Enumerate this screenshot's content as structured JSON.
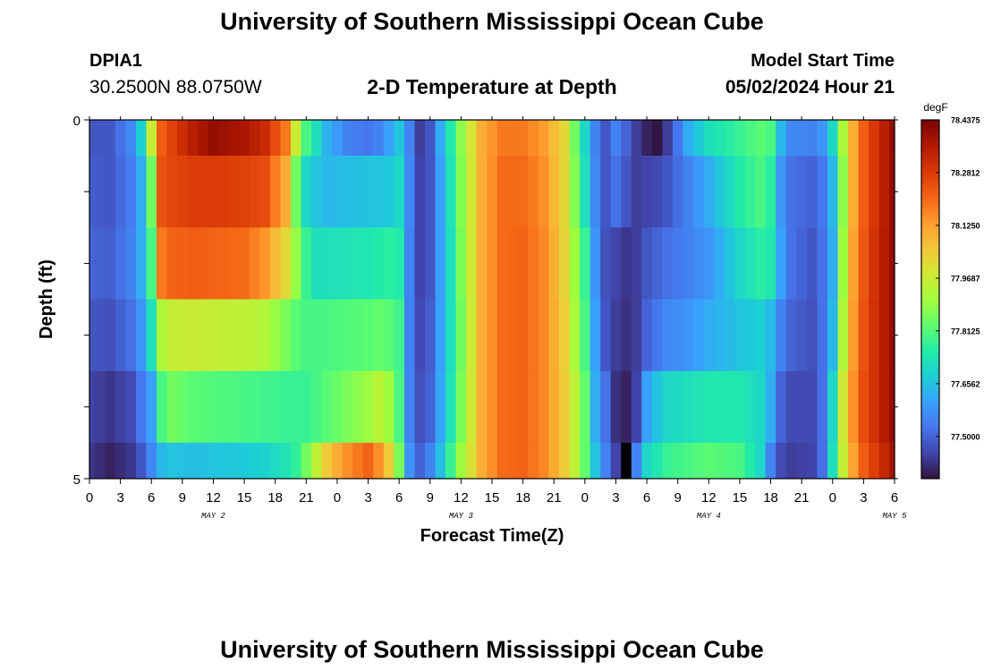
{
  "header": {
    "title": "University of Southern Mississippi Ocean Cube",
    "station_id": "DPIA1",
    "station_coords": "30.2500N  88.0750W",
    "plot_title": "2-D Temperature at Depth",
    "model_start_label": "Model Start Time",
    "model_start_value": "05/02/2024 Hour 21"
  },
  "footer": {
    "title_repeat": "University of Southern Mississippi Ocean Cube"
  },
  "chart_data": {
    "type": "heatmap",
    "title": "2-D Temperature at Depth",
    "xlabel": "Forecast Time(Z)",
    "ylabel": "Depth (ft)",
    "x_ticks": [
      "0",
      "3",
      "6",
      "9",
      "12",
      "15",
      "18",
      "21",
      "0",
      "3",
      "6",
      "9",
      "12",
      "15",
      "18",
      "21",
      "0",
      "3",
      "6",
      "9",
      "12",
      "15",
      "18",
      "21",
      "0",
      "3",
      "6"
    ],
    "x_day_labels": [
      {
        "label": "MAY 2",
        "hour": 12
      },
      {
        "label": "MAY 3",
        "hour": 36
      },
      {
        "label": "MAY 4",
        "hour": 60
      },
      {
        "label": "MAY 5",
        "hour": 78
      }
    ],
    "x_range_hours": [
      0,
      78
    ],
    "y_ticks": [
      "0",
      "5"
    ],
    "y_range_ft": [
      0,
      5
    ],
    "depth_row_edges_ft": [
      0,
      0.5,
      1.5,
      2.5,
      3.5,
      4.5,
      5
    ],
    "colorbar": {
      "unit": "degF",
      "min": 77.375,
      "max": 78.4375,
      "tick_labels": [
        "78.4375",
        "78.2812",
        "78.1250",
        "77.9687",
        "77.8125",
        "77.6562",
        "77.5000"
      ],
      "tick_values": [
        78.4375,
        78.28125,
        78.125,
        77.96875,
        77.8125,
        77.65625,
        77.5
      ],
      "colors": [
        "#30123b",
        "#4145ab",
        "#4675ed",
        "#39a2fc",
        "#1bcfd4",
        "#24eca6",
        "#61fc6c",
        "#a4fc3b",
        "#d1e834",
        "#f3c63a",
        "#fe9b2d",
        "#f36315",
        "#d93806",
        "#b11901",
        "#7a0403"
      ]
    },
    "missing_cells": [
      {
        "row": 5,
        "hour": 52
      }
    ],
    "keyframes": [
      {
        "h": 0,
        "t": [
          77.48,
          77.49,
          77.5,
          77.48,
          77.45,
          77.43
        ]
      },
      {
        "h": 2,
        "t": [
          77.48,
          77.48,
          77.49,
          77.47,
          77.43,
          77.4
        ]
      },
      {
        "h": 4,
        "t": [
          77.56,
          77.54,
          77.55,
          77.52,
          77.46,
          77.43
        ]
      },
      {
        "h": 5,
        "t": [
          77.68,
          77.62,
          77.62,
          77.58,
          77.53,
          77.48
        ]
      },
      {
        "h": 6,
        "t": [
          77.97,
          77.85,
          77.8,
          77.72,
          77.6,
          77.56
        ]
      },
      {
        "h": 6.5,
        "t": [
          78.13,
          78.2,
          78.12,
          77.84,
          77.7,
          77.62
        ]
      },
      {
        "h": 7,
        "t": [
          78.22,
          78.24,
          78.18,
          77.92,
          77.8,
          77.64
        ]
      },
      {
        "h": 8,
        "t": [
          78.27,
          78.26,
          78.21,
          77.96,
          77.85,
          77.66
        ]
      },
      {
        "h": 10,
        "t": [
          78.35,
          78.28,
          78.22,
          77.97,
          77.82,
          77.65
        ]
      },
      {
        "h": 12,
        "t": [
          78.4,
          78.28,
          78.21,
          77.96,
          77.81,
          77.66
        ]
      },
      {
        "h": 15,
        "t": [
          78.37,
          78.27,
          78.2,
          77.95,
          77.8,
          77.67
        ]
      },
      {
        "h": 17,
        "t": [
          78.32,
          78.25,
          78.14,
          77.93,
          77.79,
          77.69
        ]
      },
      {
        "h": 19,
        "t": [
          78.18,
          78.1,
          78.02,
          77.86,
          77.78,
          77.73
        ]
      },
      {
        "h": 20,
        "t": [
          77.97,
          77.85,
          77.89,
          77.82,
          77.78,
          77.77
        ]
      },
      {
        "h": 21,
        "t": [
          77.8,
          77.7,
          77.78,
          77.8,
          77.78,
          77.85
        ]
      },
      {
        "h": 22,
        "t": [
          77.72,
          77.66,
          77.72,
          77.8,
          77.8,
          77.95
        ]
      },
      {
        "h": 23,
        "t": [
          77.63,
          77.64,
          77.72,
          77.8,
          77.82,
          78.05
        ]
      },
      {
        "h": 25,
        "t": [
          77.55,
          77.65,
          77.73,
          77.81,
          77.86,
          78.15
        ]
      },
      {
        "h": 27,
        "t": [
          77.53,
          77.66,
          77.74,
          77.82,
          77.9,
          78.21
        ]
      },
      {
        "h": 28,
        "t": [
          77.55,
          77.66,
          77.75,
          77.83,
          77.94,
          78.15
        ]
      },
      {
        "h": 29,
        "t": [
          77.6,
          77.67,
          77.76,
          77.82,
          77.9,
          78.05
        ]
      },
      {
        "h": 30,
        "t": [
          77.66,
          77.7,
          77.75,
          77.79,
          77.8,
          77.86
        ]
      },
      {
        "h": 31,
        "t": [
          77.55,
          77.56,
          77.55,
          77.55,
          77.55,
          77.58
        ]
      },
      {
        "h": 32,
        "t": [
          77.44,
          77.45,
          77.45,
          77.46,
          77.47,
          77.5
        ]
      },
      {
        "h": 33,
        "t": [
          77.48,
          77.48,
          77.48,
          77.49,
          77.5,
          77.55
        ]
      },
      {
        "h": 34,
        "t": [
          77.62,
          77.6,
          77.6,
          77.6,
          77.61,
          77.65
        ]
      },
      {
        "h": 35,
        "t": [
          77.75,
          77.73,
          77.72,
          77.72,
          77.73,
          77.78
        ]
      },
      {
        "h": 36,
        "t": [
          77.88,
          77.87,
          77.86,
          77.85,
          77.86,
          77.9
        ]
      },
      {
        "h": 38,
        "t": [
          78.1,
          78.1,
          78.1,
          78.1,
          78.1,
          78.1
        ]
      },
      {
        "h": 40,
        "t": [
          78.18,
          78.2,
          78.2,
          78.2,
          78.2,
          78.2
        ]
      },
      {
        "h": 42,
        "t": [
          78.18,
          78.2,
          78.21,
          78.21,
          78.21,
          78.21
        ]
      },
      {
        "h": 44,
        "t": [
          78.13,
          78.15,
          78.16,
          78.16,
          78.16,
          78.16
        ]
      },
      {
        "h": 46,
        "t": [
          78.02,
          78.02,
          78.03,
          78.04,
          78.05,
          78.05
        ]
      },
      {
        "h": 47,
        "t": [
          77.85,
          77.87,
          77.9,
          77.92,
          77.95,
          77.95
        ]
      },
      {
        "h": 48,
        "t": [
          77.7,
          77.72,
          77.78,
          77.8,
          77.83,
          77.83
        ]
      },
      {
        "h": 49,
        "t": [
          77.55,
          77.56,
          77.58,
          77.6,
          77.62,
          77.66
        ]
      },
      {
        "h": 50,
        "t": [
          77.48,
          77.48,
          77.47,
          77.48,
          77.52,
          77.55
        ]
      },
      {
        "h": 51,
        "t": [
          77.55,
          77.52,
          77.45,
          77.44,
          77.42,
          77.45
        ]
      },
      {
        "h": 52,
        "t": [
          77.5,
          77.48,
          77.43,
          77.42,
          77.4,
          77.44
        ]
      },
      {
        "h": 53,
        "t": [
          77.44,
          77.44,
          77.44,
          77.44,
          77.45,
          77.55
        ]
      },
      {
        "h": 54,
        "t": [
          77.4,
          77.45,
          77.48,
          77.5,
          77.6,
          77.7
        ]
      },
      {
        "h": 55,
        "t": [
          77.38,
          77.46,
          77.5,
          77.53,
          77.66,
          77.74
        ]
      },
      {
        "h": 56,
        "t": [
          77.44,
          77.48,
          77.52,
          77.56,
          77.7,
          77.78
        ]
      },
      {
        "h": 58,
        "t": [
          77.62,
          77.55,
          77.55,
          77.58,
          77.72,
          77.8
        ]
      },
      {
        "h": 60,
        "t": [
          77.72,
          77.62,
          77.58,
          77.62,
          77.74,
          77.82
        ]
      },
      {
        "h": 63,
        "t": [
          77.78,
          77.75,
          77.7,
          77.66,
          77.74,
          77.8
        ]
      },
      {
        "h": 65,
        "t": [
          77.82,
          77.8,
          77.76,
          77.68,
          77.7,
          77.7
        ]
      },
      {
        "h": 66,
        "t": [
          77.8,
          77.76,
          77.74,
          77.64,
          77.62,
          77.55
        ]
      },
      {
        "h": 67,
        "t": [
          77.64,
          77.58,
          77.6,
          77.55,
          77.5,
          77.46
        ]
      },
      {
        "h": 68,
        "t": [
          77.56,
          77.52,
          77.52,
          77.5,
          77.46,
          77.44
        ]
      },
      {
        "h": 70,
        "t": [
          77.55,
          77.5,
          77.48,
          77.47,
          77.46,
          77.45
        ]
      },
      {
        "h": 71,
        "t": [
          77.58,
          77.53,
          77.52,
          77.52,
          77.52,
          77.52
        ]
      },
      {
        "h": 72,
        "t": [
          77.7,
          77.64,
          77.62,
          77.64,
          77.7,
          77.72
        ]
      },
      {
        "h": 73,
        "t": [
          77.92,
          77.88,
          77.9,
          77.93,
          77.98,
          77.96
        ]
      },
      {
        "h": 74,
        "t": [
          78.1,
          78.1,
          78.12,
          78.13,
          78.15,
          78.12
        ]
      },
      {
        "h": 75,
        "t": [
          78.22,
          78.22,
          78.23,
          78.24,
          78.25,
          78.22
        ]
      },
      {
        "h": 76.5,
        "t": [
          78.32,
          78.32,
          78.33,
          78.33,
          78.33,
          78.3
        ]
      },
      {
        "h": 78,
        "t": [
          78.4,
          78.4,
          78.4,
          78.4,
          78.4,
          78.38
        ]
      }
    ]
  }
}
